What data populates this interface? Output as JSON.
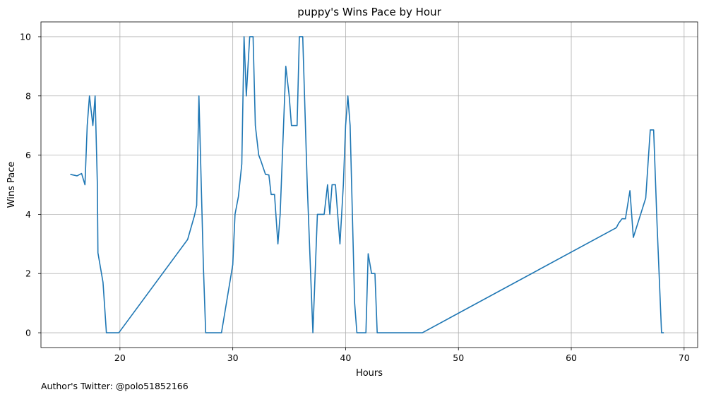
{
  "chart_data": {
    "type": "line",
    "title": "puppy's Wins Pace by Hour",
    "xlabel": "Hours",
    "ylabel": "Wins Pace",
    "xlim": [
      13,
      71.2
    ],
    "ylim": [
      -0.5,
      10.5
    ],
    "xticks": [
      20,
      30,
      40,
      50,
      60,
      70
    ],
    "yticks": [
      0,
      2,
      4,
      6,
      8,
      10
    ],
    "grid": true,
    "series": [
      {
        "color": "#1f77b4",
        "x": [
          15.6,
          16.2,
          16.6,
          16.9,
          17.1,
          17.3,
          17.6,
          17.8,
          18.0,
          18.05,
          18.5,
          18.8,
          19.0,
          19.9,
          26.0,
          26.6,
          26.8,
          27.0,
          27.4,
          27.6,
          27.8,
          28.0,
          29.0,
          30.0,
          30.2,
          30.5,
          30.8,
          31.0,
          31.2,
          31.5,
          31.8,
          32.0,
          32.3,
          32.5,
          32.9,
          33.2,
          33.4,
          33.7,
          34.0,
          34.2,
          34.5,
          34.7,
          35.0,
          35.2,
          35.7,
          35.9,
          36.2,
          36.6,
          36.9,
          37.1,
          37.3,
          37.5,
          37.7,
          38.1,
          38.4,
          38.6,
          38.8,
          39.1,
          39.5,
          39.8,
          40.0,
          40.2,
          40.4,
          40.8,
          41.0,
          41.3,
          41.8,
          42.0,
          42.3,
          42.6,
          42.8,
          43.0,
          46.8,
          64.0,
          64.2,
          64.5,
          64.8,
          65.2,
          65.5,
          66.6,
          67.0,
          67.3,
          67.6,
          68.0,
          68.2
        ],
        "y": [
          5.35,
          5.3,
          5.38,
          5.0,
          7.0,
          8.0,
          7.0,
          8.0,
          5.0,
          2.7,
          1.7,
          0.0,
          0.0,
          0.0,
          3.15,
          3.95,
          4.3,
          8.0,
          2.2,
          0.0,
          0.0,
          0.0,
          0.0,
          2.3,
          4.0,
          4.6,
          5.7,
          10.0,
          8.0,
          10.0,
          10.0,
          7.0,
          6.0,
          5.8,
          5.35,
          5.33,
          4.67,
          4.67,
          3.0,
          4.0,
          7.0,
          9.0,
          8.0,
          7.0,
          7.0,
          10.0,
          10.0,
          5.0,
          2.0,
          0.0,
          2.0,
          4.0,
          4.0,
          4.0,
          5.0,
          4.0,
          5.0,
          5.0,
          3.0,
          5.0,
          7.0,
          8.0,
          7.0,
          1.0,
          0.0,
          0.0,
          0.0,
          2.67,
          2.0,
          2.0,
          0.0,
          0.0,
          0.0,
          3.55,
          3.7,
          3.85,
          3.85,
          4.8,
          3.22,
          4.55,
          6.85,
          6.85,
          3.7,
          0.0,
          0.0
        ]
      }
    ]
  },
  "footer": {
    "credit": "Author's Twitter: @polo51852166"
  }
}
